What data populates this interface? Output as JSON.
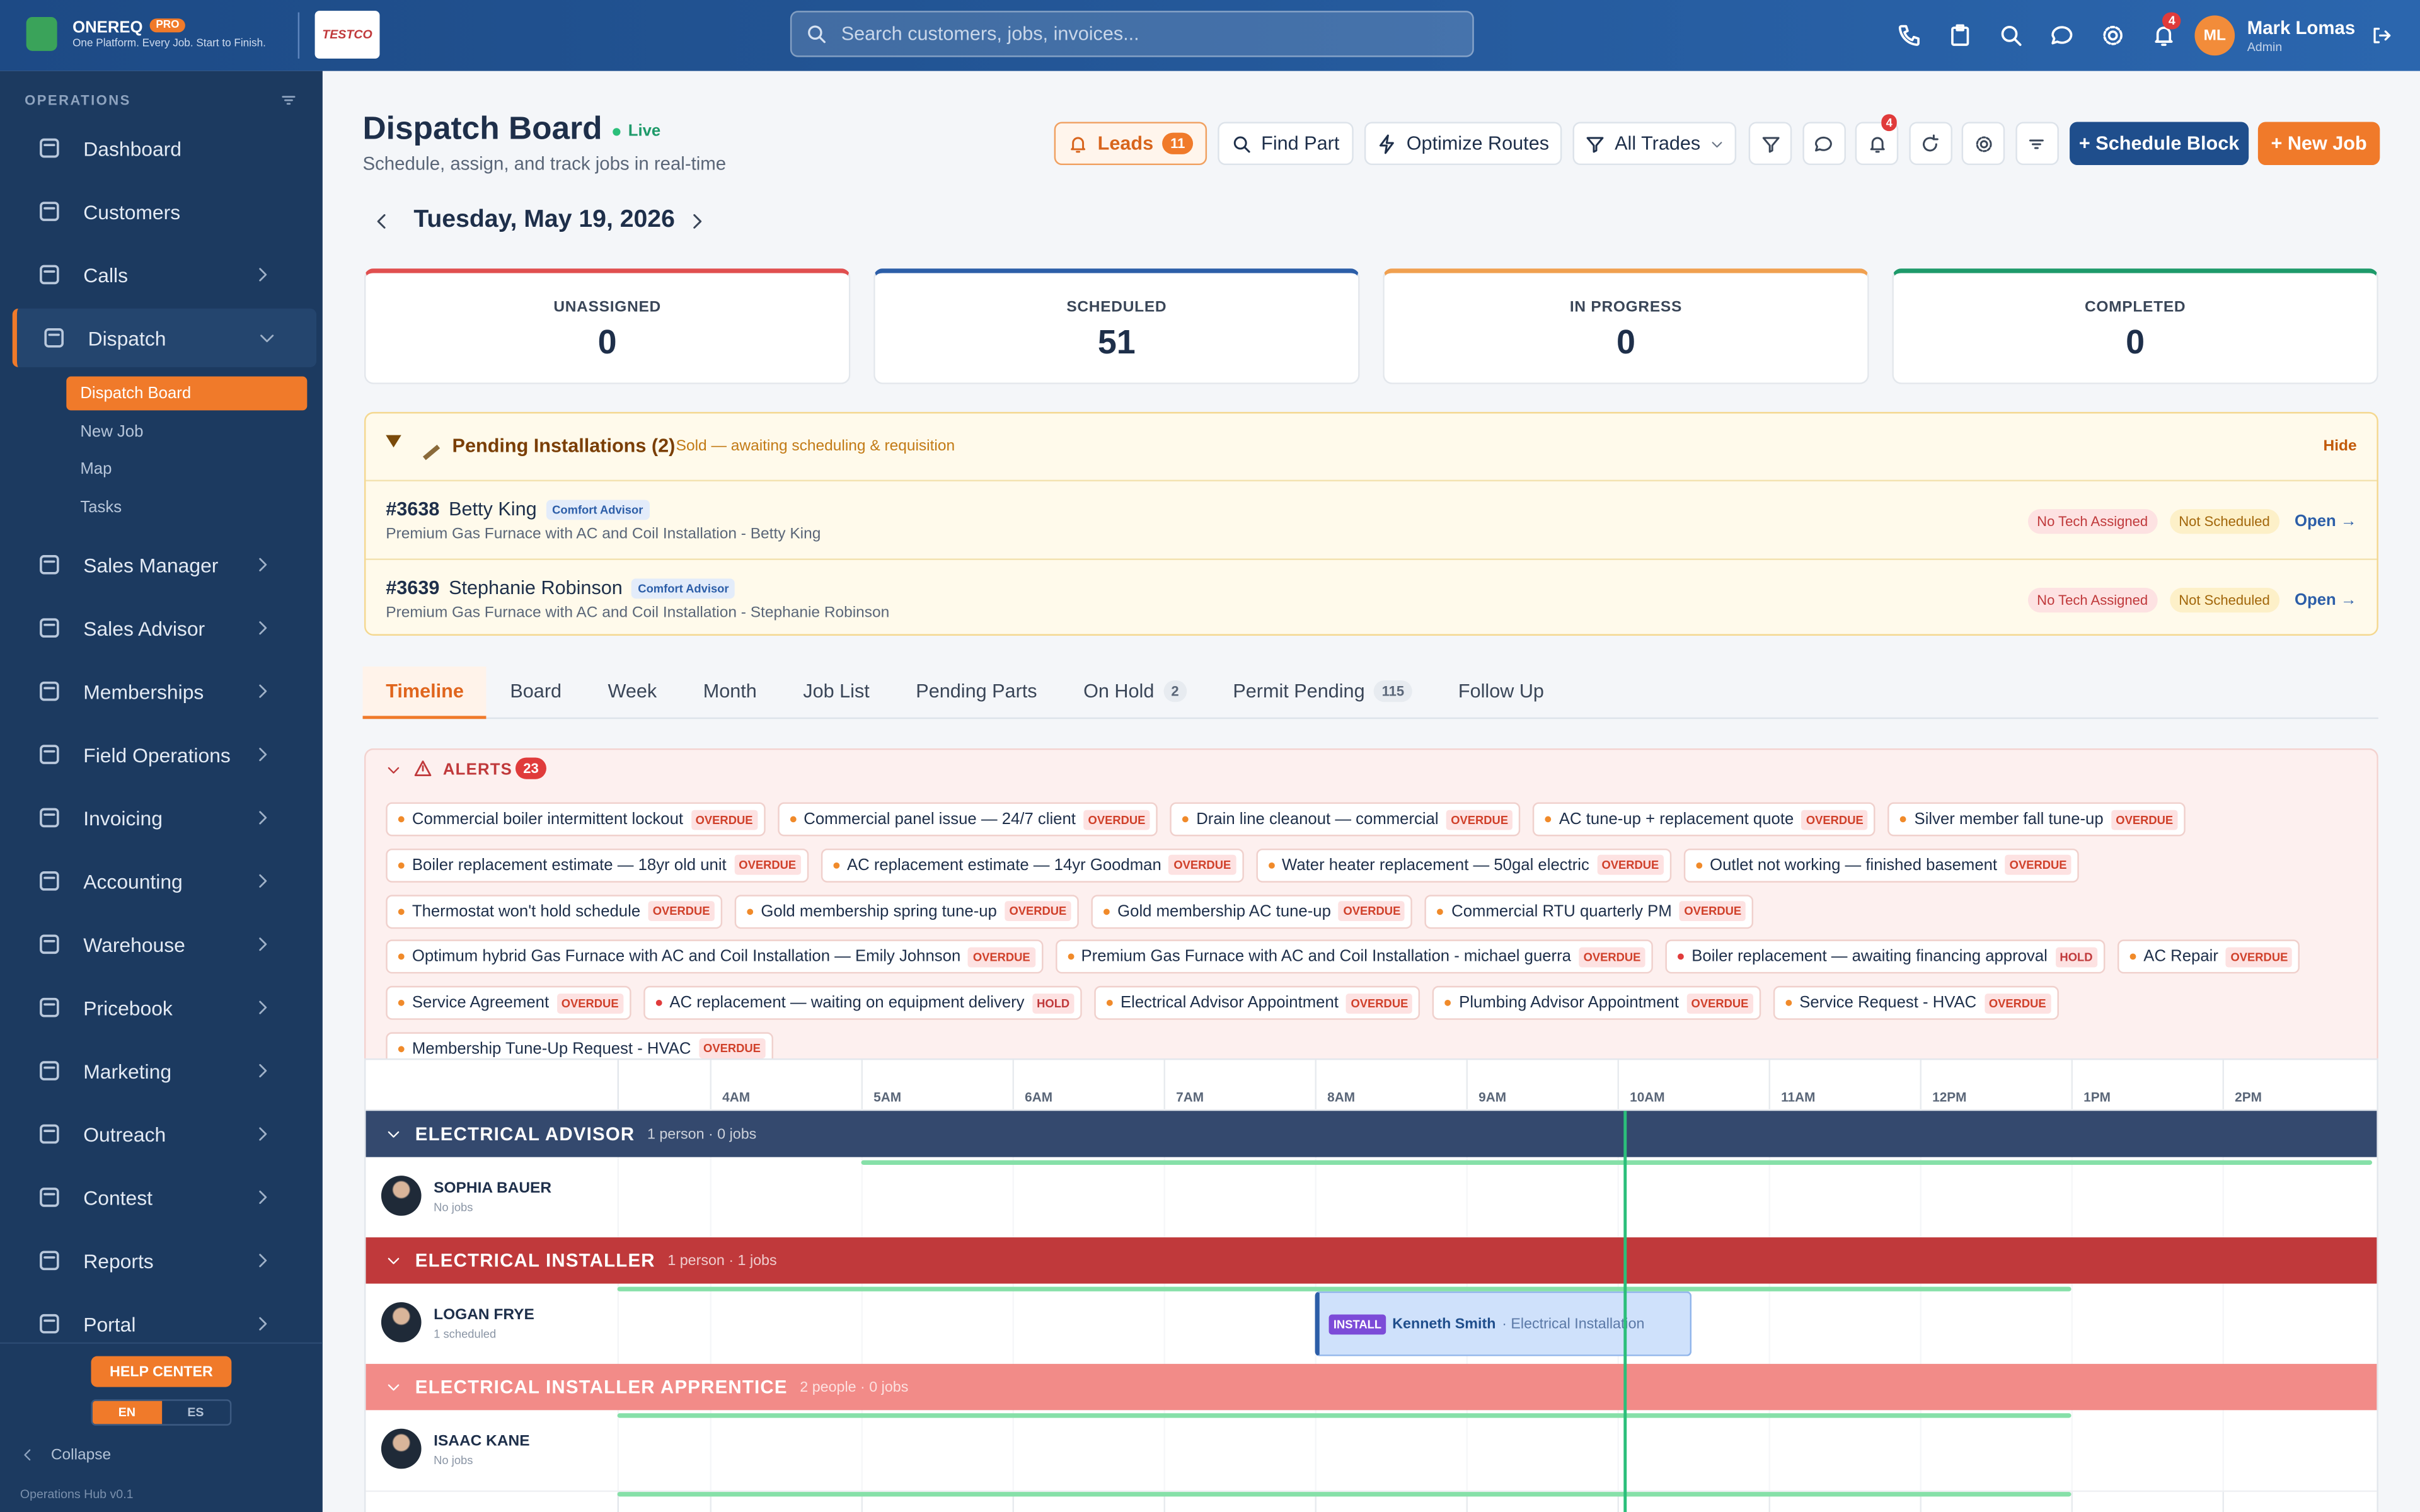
{
  "brand": {
    "name": "ONEREQ",
    "badge": "PRO",
    "tagline": "One Platform. Every Job. Start to Finish.",
    "logo": "TESTCO"
  },
  "search": {
    "placeholder": "Search customers, jobs, invoices..."
  },
  "user": {
    "notifications": 4,
    "initials": "ML",
    "name": "Mark Lomas",
    "role": "Admin"
  },
  "sidebar": {
    "section": "OPERATIONS",
    "items": [
      {
        "label": "Dashboard"
      },
      {
        "label": "Customers"
      },
      {
        "label": "Calls",
        "submenu": true
      },
      {
        "label": "Dispatch",
        "submenu": true,
        "active": true,
        "children": [
          "Dispatch Board",
          "New Job",
          "Map",
          "Tasks"
        ]
      },
      {
        "label": "Sales Manager",
        "submenu": true
      },
      {
        "label": "Sales Advisor",
        "submenu": true
      },
      {
        "label": "Memberships",
        "submenu": true
      },
      {
        "label": "Field Operations",
        "submenu": true
      },
      {
        "label": "Invoicing",
        "submenu": true
      },
      {
        "label": "Accounting",
        "submenu": true
      },
      {
        "label": "Warehouse",
        "submenu": true
      },
      {
        "label": "Pricebook",
        "submenu": true
      },
      {
        "label": "Marketing",
        "submenu": true
      },
      {
        "label": "Outreach",
        "submenu": true
      },
      {
        "label": "Contest",
        "submenu": true
      },
      {
        "label": "Reports",
        "submenu": true
      },
      {
        "label": "Portal",
        "submenu": true
      }
    ],
    "help": "HELP CENTER",
    "languages": [
      "EN",
      "ES"
    ],
    "collapse": "Collapse",
    "version": "Operations Hub v0.1"
  },
  "header": {
    "title": "Dispatch Board",
    "status": "Live",
    "subtitle": "Schedule, assign, and track jobs in real-time",
    "leads": "Leads",
    "leads_count": 11,
    "buttons": [
      "Find Part",
      "Optimize Routes",
      "All Trades"
    ],
    "bell_count": 4,
    "schedule": "+ Schedule Block",
    "new_job": "+ New Job"
  },
  "date": "Tuesday, May 19, 2026",
  "stats": [
    {
      "label": "UNASSIGNED",
      "value": 0,
      "color": "#e04f4f"
    },
    {
      "label": "SCHEDULED",
      "value": 51,
      "color": "#2c5ea8"
    },
    {
      "label": "IN PROGRESS",
      "value": 0,
      "color": "#f0a050"
    },
    {
      "label": "COMPLETED",
      "value": 0,
      "color": "#1e9a6a"
    }
  ],
  "pending": {
    "title": "Pending Installations (2)",
    "subtitle": "Sold — awaiting scheduling & requisition",
    "hide": "Hide",
    "items": [
      {
        "id": "#3638",
        "name": "Betty King",
        "tag": "Comfort Advisor",
        "desc": "Premium Gas Furnace with AC and Coil Installation - Betty King",
        "badges": [
          "No Tech Assigned",
          "Not Scheduled"
        ],
        "action": "Open →"
      },
      {
        "id": "#3639",
        "name": "Stephanie Robinson",
        "tag": "Comfort Advisor",
        "desc": "Premium Gas Furnace with AC and Coil Installation - Stephanie Robinson",
        "badges": [
          "No Tech Assigned",
          "Not Scheduled"
        ],
        "action": "Open →"
      }
    ]
  },
  "tabs": [
    {
      "label": "Timeline",
      "active": true
    },
    {
      "label": "Board"
    },
    {
      "label": "Week"
    },
    {
      "label": "Month"
    },
    {
      "label": "Job List"
    },
    {
      "label": "Pending Parts"
    },
    {
      "label": "On Hold",
      "count": 2
    },
    {
      "label": "Permit Pending",
      "count": 115
    },
    {
      "label": "Follow Up"
    }
  ],
  "alerts": {
    "title": "ALERTS",
    "count": 23,
    "items": [
      {
        "text": "Commercial boiler intermittent lockout",
        "status": "OVERDUE"
      },
      {
        "text": "Commercial panel issue — 24/7 client",
        "status": "OVERDUE"
      },
      {
        "text": "Drain line cleanout — commercial",
        "status": "OVERDUE"
      },
      {
        "text": "AC tune-up + replacement quote",
        "status": "OVERDUE"
      },
      {
        "text": "Silver member fall tune-up",
        "status": "OVERDUE"
      },
      {
        "text": "Boiler replacement estimate — 18yr old unit",
        "status": "OVERDUE"
      },
      {
        "text": "AC replacement estimate — 14yr Goodman",
        "status": "OVERDUE"
      },
      {
        "text": "Water heater replacement — 50gal electric",
        "status": "OVERDUE"
      },
      {
        "text": "Outlet not working — finished basement",
        "status": "OVERDUE"
      },
      {
        "text": "Thermostat won't hold schedule",
        "status": "OVERDUE"
      },
      {
        "text": "Gold membership spring tune-up",
        "status": "OVERDUE"
      },
      {
        "text": "Gold membership AC tune-up",
        "status": "OVERDUE"
      },
      {
        "text": "Commercial RTU quarterly PM",
        "status": "OVERDUE"
      },
      {
        "text": "Optimum hybrid Gas Furnace with AC and Coil Installation — Emily Johnson",
        "status": "OVERDUE"
      },
      {
        "text": "Premium Gas Furnace with AC and Coil Installation - michael guerra",
        "status": "OVERDUE"
      },
      {
        "text": "Boiler replacement — awaiting financing approval",
        "status": "HOLD"
      },
      {
        "text": "AC Repair",
        "status": "OVERDUE"
      },
      {
        "text": "Service Agreement",
        "status": "OVERDUE"
      },
      {
        "text": "AC replacement — waiting on equipment delivery",
        "status": "HOLD"
      },
      {
        "text": "Electrical Advisor Appointment",
        "status": "OVERDUE"
      },
      {
        "text": "Plumbing Advisor Appointment",
        "status": "OVERDUE"
      },
      {
        "text": "Service Request - HVAC",
        "status": "OVERDUE"
      },
      {
        "text": "Membership Tune-Up Request - HVAC",
        "status": "OVERDUE"
      }
    ]
  },
  "timeline": {
    "hours": [
      "4AM",
      "5AM",
      "6AM",
      "7AM",
      "8AM",
      "9AM",
      "10AM",
      "11AM",
      "12PM",
      "1PM",
      "2PM"
    ],
    "groups": [
      {
        "name": "ELECTRICAL ADVISOR",
        "meta": "1 person · 0 jobs",
        "color": "#34496e",
        "techs": [
          {
            "name": "SOPHIA BAUER",
            "status": "No jobs"
          }
        ]
      },
      {
        "name": "ELECTRICAL INSTALLER",
        "meta": "1 person · 1 jobs",
        "color": "#c0393b",
        "techs": [
          {
            "name": "LOGAN FRYE",
            "status": "1 scheduled",
            "job": {
              "tag": "INSTALL",
              "customer": "Kenneth Smith",
              "detail": "· Electrical Installation"
            }
          }
        ]
      },
      {
        "name": "ELECTRICAL INSTALLER APPRENTICE",
        "meta": "2 people · 0 jobs",
        "color": "#f28b88",
        "techs": [
          {
            "name": "ISAAC KANE",
            "status": "No jobs"
          }
        ]
      }
    ]
  }
}
